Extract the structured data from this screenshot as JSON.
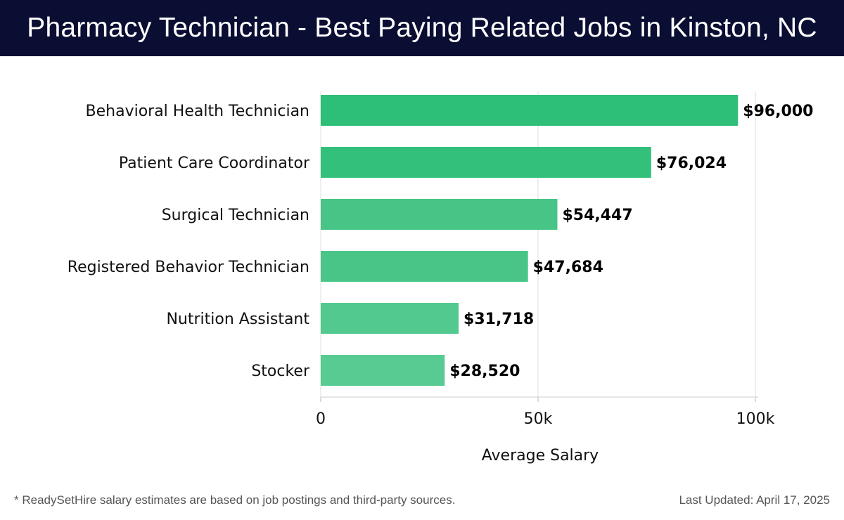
{
  "header": {
    "title": "Pharmacy Technician - Best Paying Related Jobs in Kinston, NC",
    "background_color": "#0b0e33"
  },
  "chart_data": {
    "type": "bar",
    "orientation": "horizontal",
    "categories": [
      "Behavioral Health Technician",
      "Patient Care Coordinator",
      "Surgical Technician",
      "Registered Behavior Technician",
      "Nutrition Assistant",
      "Stocker"
    ],
    "values": [
      96000,
      76024,
      54447,
      47684,
      31718,
      28520
    ],
    "value_labels": [
      "$96,000",
      "$76,024",
      "$54,447",
      "$47,684",
      "$31,718",
      "$28,520"
    ],
    "xlabel": "Average Salary",
    "ylabel": "",
    "xlim": [
      0,
      100000
    ],
    "x_ticks": [
      0,
      50000,
      100000
    ],
    "x_tick_labels": [
      "0",
      "50k",
      "100k"
    ],
    "grid": true,
    "bar_colors": [
      "#2dbe78",
      "#33c07b",
      "#47c486",
      "#4ac588",
      "#52c98e",
      "#57cb91"
    ]
  },
  "footer": {
    "note": "* ReadySetHire salary estimates are based on job postings and third-party sources.",
    "updated": "Last Updated: April 17, 2025"
  }
}
